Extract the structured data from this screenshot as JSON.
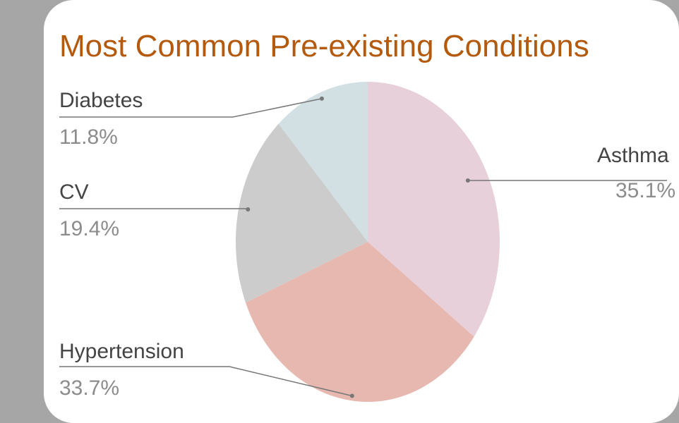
{
  "chart_data": {
    "type": "pie",
    "title": "Most Common Pre-existing Conditions",
    "slices": [
      {
        "label": "Asthma",
        "value": 35.1,
        "display": "35.1%",
        "color": "#e8d0db"
      },
      {
        "label": "Hypertension",
        "value": 33.7,
        "display": "33.7%",
        "color": "#e6b8b0"
      },
      {
        "label": "CV",
        "value": 19.4,
        "display": "19.4%",
        "color": "#cccccc"
      },
      {
        "label": "Diabetes",
        "value": 11.8,
        "display": "11.8%",
        "color": "#d2e0e3"
      }
    ],
    "leader_line_color": "#777777"
  }
}
